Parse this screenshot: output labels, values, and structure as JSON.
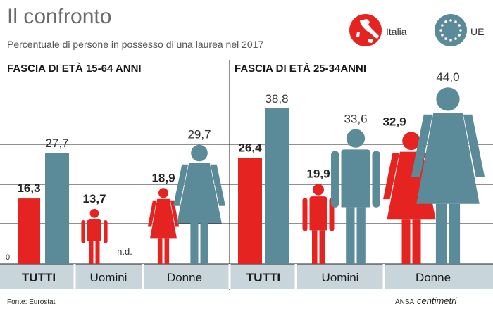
{
  "title": "Il confronto",
  "subtitle": "Percentuale di persone in possesso di una laurea nel 2017",
  "legend": [
    {
      "label": "Italia",
      "color": "#e52421",
      "icon": "italy-map-icon"
    },
    {
      "label": "UE",
      "color": "#5b8a99",
      "icon": "eu-stars-icon"
    }
  ],
  "zero_label": "0",
  "na_label": "n.d.",
  "source": "Fonte: Eurostat",
  "credit": {
    "agency": "ANSA",
    "brand": "centimetri"
  },
  "colors": {
    "italia": "#e52421",
    "ue": "#5b8a99",
    "axis_band": "#c8d6dc"
  },
  "chart_data": [
    {
      "type": "bar",
      "title": "FASCIA DI ETÀ 15-64 ANNI",
      "categories": [
        "TUTTI",
        "Uomini",
        "Donne"
      ],
      "series": [
        {
          "name": "Italia",
          "values": [
            16.3,
            13.7,
            18.9
          ]
        },
        {
          "name": "UE",
          "values": [
            27.7,
            null,
            29.7
          ]
        }
      ],
      "value_labels": {
        "Italia": [
          "16,3",
          "13,7",
          "18,9"
        ],
        "UE": [
          "27,7",
          "n.d.",
          "29,7"
        ]
      },
      "ylim": [
        0,
        45
      ],
      "grid": true,
      "legend_position": "top-right"
    },
    {
      "type": "bar",
      "title": "FASCIA DI ETÀ 25-34ANNI",
      "categories": [
        "TUTTI",
        "Uomini",
        "Donne"
      ],
      "series": [
        {
          "name": "Italia",
          "values": [
            26.4,
            19.9,
            32.9
          ]
        },
        {
          "name": "UE",
          "values": [
            38.8,
            33.6,
            44.0
          ]
        }
      ],
      "value_labels": {
        "Italia": [
          "26,4",
          "19,9",
          "32,9"
        ],
        "UE": [
          "38,8",
          "33,6",
          "44,0"
        ]
      },
      "ylim": [
        0,
        45
      ],
      "grid": true,
      "legend_position": "top-right"
    }
  ]
}
